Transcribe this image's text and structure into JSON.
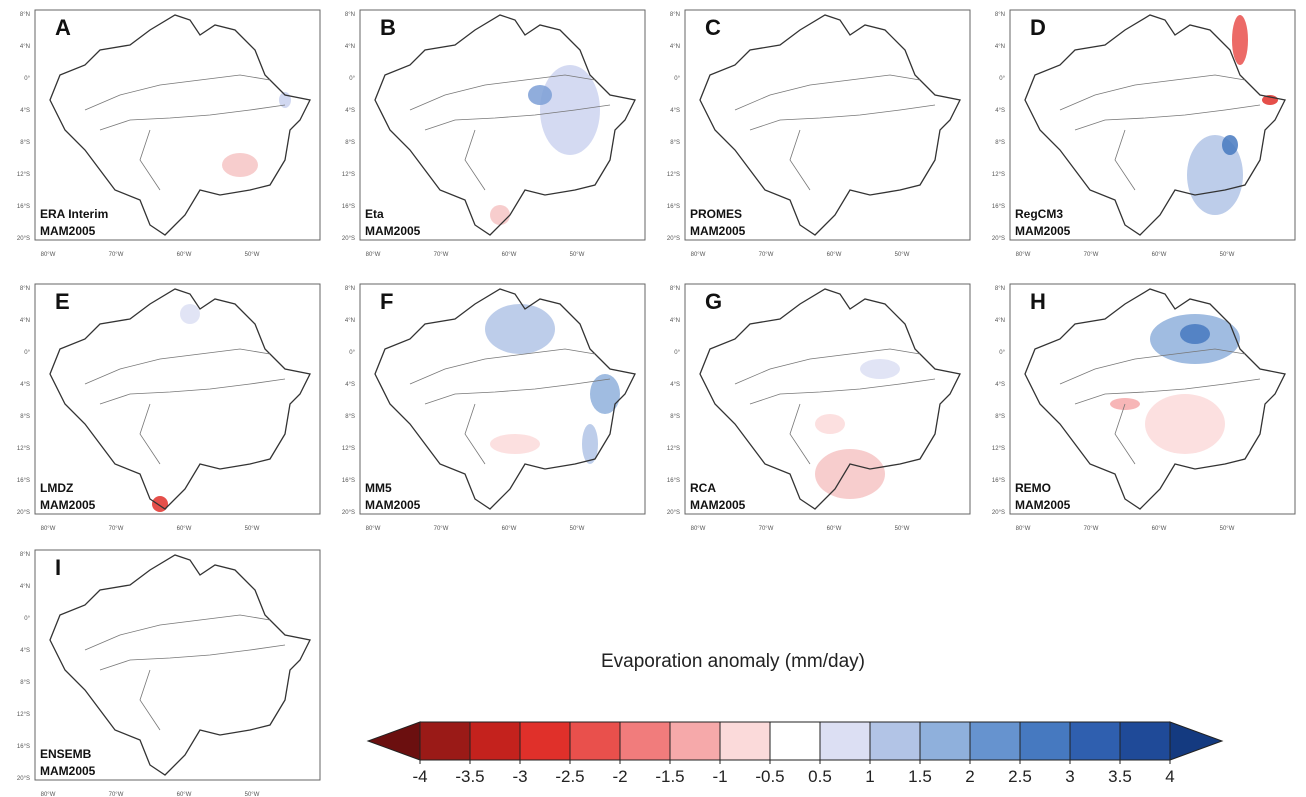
{
  "panels": [
    {
      "letter": "A",
      "model": "ERA Interim",
      "period": "MAM2005"
    },
    {
      "letter": "B",
      "model": "Eta",
      "period": "MAM2005"
    },
    {
      "letter": "C",
      "model": "PROMES",
      "period": "MAM2005"
    },
    {
      "letter": "D",
      "model": "RegCM3",
      "period": "MAM2005"
    },
    {
      "letter": "E",
      "model": "LMDZ",
      "period": "MAM2005"
    },
    {
      "letter": "F",
      "model": "MM5",
      "period": "MAM2005"
    },
    {
      "letter": "G",
      "model": "RCA",
      "period": "MAM2005"
    },
    {
      "letter": "H",
      "model": "REMO",
      "period": "MAM2005"
    },
    {
      "letter": "I",
      "model": "ENSEMB",
      "period": "MAM2005"
    }
  ],
  "lat_labels": [
    "8°N",
    "4°N",
    "0°",
    "4°S",
    "8°S",
    "12°S",
    "16°S",
    "20°S"
  ],
  "lon_labels": [
    "80°W",
    "70°W",
    "60°W",
    "50°W"
  ],
  "colorbar": {
    "title": "Evaporation anomaly (mm/day)",
    "ticks": [
      -4,
      -3.5,
      -3,
      -2.5,
      -2,
      -1.5,
      -1,
      -0.5,
      0.5,
      1,
      1.5,
      2,
      2.5,
      3,
      3.5,
      4
    ],
    "colors": [
      "#6b0f0f",
      "#9a1a17",
      "#c4221d",
      "#e0302a",
      "#e9504c",
      "#f17c7c",
      "#f6a9aa",
      "#fbdada",
      "#ffffff",
      "#dcdff3",
      "#b2c4e6",
      "#8fb0dc",
      "#6693cf",
      "#4679c0",
      "#2f5faf",
      "#1f4a98",
      "#143a80"
    ]
  }
}
